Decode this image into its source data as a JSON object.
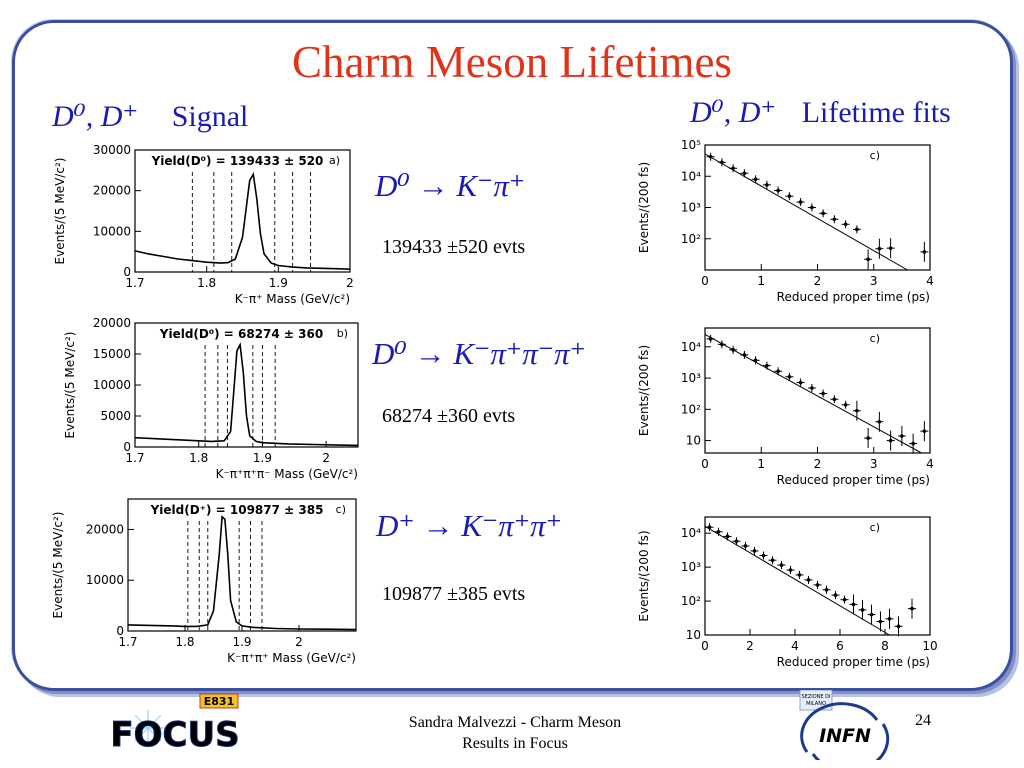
{
  "slide": {
    "title": "Charm Meson Lifetimes",
    "left_heading": {
      "math": "D⁰, D⁺",
      "text": "Signal"
    },
    "right_heading": {
      "math": "D⁰, D⁺",
      "text": "Lifetime fits"
    },
    "footer_line1": "Sandra Malvezzi - Charm Meson",
    "footer_line2": "Results  in Focus",
    "page_number": "24",
    "logo_left": {
      "label": "FOCUS",
      "badge": "E831"
    },
    "logo_right": {
      "label": "INFN",
      "caption_line1": "SEZIONE DI",
      "caption_line2": "MILANO"
    }
  },
  "rows": [
    {
      "reaction": "D⁰ → K⁻π⁺",
      "events": "139433 ±520 evts"
    },
    {
      "reaction": "D⁰ → K⁻π⁺π⁻π⁺",
      "events": "68274 ±360 evts"
    },
    {
      "reaction": "D⁺ → K⁻π⁺π⁺",
      "events": "109877 ±385 evts"
    }
  ],
  "colors": {
    "title": "#e0341a",
    "heading": "#1a1ab4",
    "frame": "#3c4f9c"
  },
  "chart_data": [
    {
      "type": "line",
      "title": "Yield(D⁰) = 139433 ± 520",
      "panel_label": "a)",
      "xlabel": "K⁻π⁺  Mass   (GeV/c²)",
      "ylabel": "Events/(5 MeV/c²)",
      "xlim": [
        1.7,
        2.0
      ],
      "ylim": [
        0,
        30000
      ],
      "xticks": [
        "1.7",
        "1.8",
        "1.9",
        "2"
      ],
      "yticks": [
        "0",
        "10000",
        "20000",
        "30000"
      ],
      "series": [
        {
          "x": [
            1.7,
            1.72,
            1.74,
            1.76,
            1.78,
            1.8,
            1.82,
            1.83,
            1.84,
            1.85,
            1.855,
            1.86,
            1.865,
            1.87,
            1.875,
            1.88,
            1.89,
            1.9,
            1.92,
            1.94,
            1.96,
            1.98,
            2.0
          ],
          "y": [
            5200,
            4400,
            3800,
            3200,
            2800,
            2400,
            2200,
            2300,
            3200,
            8500,
            15500,
            22500,
            24000,
            18000,
            9500,
            4500,
            2200,
            1600,
            1200,
            1000,
            900,
            800,
            700
          ]
        }
      ],
      "cut_lines": [
        1.78,
        1.81,
        1.835,
        1.895,
        1.92,
        1.945
      ]
    },
    {
      "type": "line",
      "title": "Yield(D⁰) = 68274 ± 360",
      "panel_label": "b)",
      "xlabel": "K⁻π⁺π⁺π⁻  Mass   (GeV/c²)",
      "ylabel": "Events/(5 MeV/c²)",
      "xlim": [
        1.7,
        2.05
      ],
      "ylim": [
        0,
        20000
      ],
      "xticks": [
        "1.7",
        "1.8",
        "1.9",
        "2"
      ],
      "yticks": [
        "0",
        "5000",
        "10000",
        "15000",
        "20000"
      ],
      "series": [
        {
          "x": [
            1.7,
            1.74,
            1.78,
            1.8,
            1.82,
            1.84,
            1.85,
            1.855,
            1.86,
            1.865,
            1.87,
            1.875,
            1.88,
            1.89,
            1.9,
            1.94,
            1.98,
            2.02,
            2.05
          ],
          "y": [
            1500,
            1300,
            1100,
            1000,
            900,
            1000,
            2500,
            9000,
            15500,
            16500,
            12000,
            5000,
            1800,
            900,
            700,
            500,
            400,
            300,
            250
          ]
        }
      ],
      "cut_lines": [
        1.81,
        1.83,
        1.845,
        1.885,
        1.9,
        1.92
      ]
    },
    {
      "type": "line",
      "title": "Yield(D⁺) = 109877 ± 385",
      "panel_label": "c)",
      "xlabel": "K⁻π⁺π⁺  Mass   (GeV/c²)",
      "ylabel": "Events/(5 MeV/c²)",
      "xlim": [
        1.7,
        2.1
      ],
      "ylim": [
        0,
        26000
      ],
      "xticks": [
        "1.7",
        "1.8",
        "1.9",
        "2"
      ],
      "yticks": [
        "0",
        "10000",
        "20000"
      ],
      "series": [
        {
          "x": [
            1.7,
            1.74,
            1.78,
            1.8,
            1.82,
            1.84,
            1.85,
            1.86,
            1.865,
            1.87,
            1.875,
            1.88,
            1.89,
            1.9,
            1.92,
            1.96,
            2.0,
            2.05,
            2.1
          ],
          "y": [
            1200,
            1100,
            1000,
            900,
            900,
            1200,
            4000,
            15000,
            22500,
            22000,
            15000,
            6000,
            1800,
            1000,
            700,
            500,
            400,
            350,
            300
          ]
        }
      ],
      "cut_lines": [
        1.805,
        1.825,
        1.84,
        1.895,
        1.915,
        1.935
      ]
    },
    {
      "type": "scatter",
      "panel_label": "c)",
      "xlabel": "Reduced proper time (ps)",
      "ylabel": "Events/(200 fs)",
      "scale": "log",
      "xlim": [
        0,
        4
      ],
      "ylim": [
        10,
        100000
      ],
      "xticks": [
        "0",
        "1",
        "2",
        "3",
        "4"
      ],
      "yticks": [
        "10²",
        "10³",
        "10⁴",
        "10⁵"
      ],
      "series": [
        {
          "x": [
            0.1,
            0.3,
            0.5,
            0.7,
            0.9,
            1.1,
            1.3,
            1.5,
            1.7,
            1.9,
            2.1,
            2.3,
            2.5,
            2.7,
            2.9,
            3.1,
            3.3,
            3.9
          ],
          "y": [
            42000,
            28000,
            18000,
            12500,
            8000,
            5300,
            3500,
            2300,
            1500,
            1000,
            650,
            420,
            290,
            200,
            22,
            48,
            50,
            38
          ]
        }
      ],
      "fit_line": [
        [
          0,
          52000
        ],
        [
          3.6,
          10
        ]
      ]
    },
    {
      "type": "scatter",
      "panel_label": "c)",
      "xlabel": "Reduced proper time (ps)",
      "ylabel": "Events/(200 fs)",
      "scale": "log",
      "xlim": [
        0,
        4
      ],
      "ylim": [
        4,
        40000
      ],
      "xticks": [
        "0",
        "1",
        "2",
        "3",
        "4"
      ],
      "yticks": [
        "10",
        "10²",
        "10³",
        "10⁴"
      ],
      "series": [
        {
          "x": [
            0.1,
            0.3,
            0.5,
            0.7,
            0.9,
            1.1,
            1.3,
            1.5,
            1.7,
            1.9,
            2.1,
            2.3,
            2.5,
            2.7,
            2.9,
            3.1,
            3.3,
            3.5,
            3.7,
            3.9
          ],
          "y": [
            18000,
            12000,
            8000,
            5500,
            3700,
            2500,
            1650,
            1100,
            720,
            480,
            320,
            210,
            140,
            90,
            12,
            40,
            10,
            14,
            8,
            20
          ]
        }
      ],
      "fit_line": [
        [
          0,
          25000
        ],
        [
          3.85,
          4
        ]
      ]
    },
    {
      "type": "scatter",
      "panel_label": "c)",
      "xlabel": "Reduced proper time (ps)",
      "ylabel": "Events/(200 fs)",
      "scale": "log",
      "xlim": [
        0,
        10
      ],
      "ylim": [
        10,
        30000
      ],
      "xticks": [
        "0",
        "2",
        "4",
        "6",
        "8",
        "10"
      ],
      "yticks": [
        "10",
        "10²",
        "10³",
        "10⁴"
      ],
      "series": [
        {
          "x": [
            0.2,
            0.6,
            1.0,
            1.4,
            1.8,
            2.2,
            2.6,
            3.0,
            3.4,
            3.8,
            4.2,
            4.6,
            5.0,
            5.4,
            5.8,
            6.2,
            6.6,
            7.0,
            7.4,
            7.8,
            8.2,
            8.6,
            9.2
          ],
          "y": [
            15000,
            11000,
            8000,
            5800,
            4200,
            3000,
            2200,
            1600,
            1150,
            820,
            590,
            420,
            300,
            215,
            150,
            110,
            80,
            55,
            40,
            25,
            30,
            18,
            60
          ]
        }
      ],
      "fit_line": [
        [
          0,
          16000
        ],
        [
          8.2,
          10
        ]
      ]
    }
  ]
}
